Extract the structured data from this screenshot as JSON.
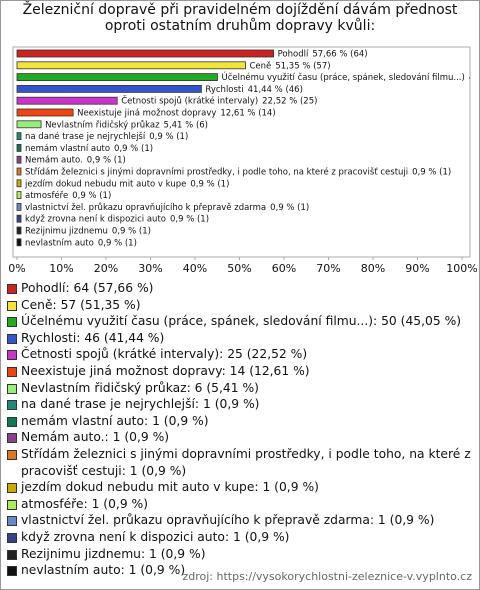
{
  "chart_data": {
    "type": "bar",
    "orientation": "horizontal",
    "title": "Železniční dopravě při pravidelném dojíždění dávám přednost oproti ostatním druhům dopravy kvůli:",
    "categories": [
      "Pohodlí",
      "Ceně",
      "Účelnému využití času (práce, spánek, sledování filmu...)",
      "Rychlosti",
      "Četnosti spojů (krátké intervaly)",
      "Neexistuje jiná možnost dopravy",
      "Nevlastním řidičský průkaz",
      "na dané trase je nejrychlejší",
      "nemám vlastní auto",
      "Nemám auto.",
      "Střídám železnici s jinými dopravními prostředky, i podle toho, na které z pracovišť cestuji",
      "jezdím dokud nebudu mit auto v kupe",
      "atmosféře",
      "vlastnictví žel. průkazu opravňujícího k přepravě zdarma",
      "když zrovna není k dispozici auto",
      "Rezijnimu jizdnemu",
      "nevlastním auto"
    ],
    "values": [
      57.66,
      51.35,
      45.05,
      41.44,
      22.52,
      12.61,
      5.41,
      0.9,
      0.9,
      0.9,
      0.9,
      0.9,
      0.9,
      0.9,
      0.9,
      0.9,
      0.9
    ],
    "value_labels": [
      "57,66 % (64)",
      "51,35 % (57)",
      "45,05 % (50)",
      "41,44 % (46)",
      "22,52 % (25)",
      "12,61 % (14)",
      "5,41 % (6)",
      "0,9 % (1)",
      "0,9 % (1)",
      "0,9 % (1)",
      "0,9 % (1)",
      "0,9 % (1)",
      "0,9 % (1)",
      "0,9 % (1)",
      "0,9 % (1)",
      "0,9 % (1)",
      "0,9 % (1)"
    ],
    "colors": [
      "#cc2222",
      "#f2e43a",
      "#22aa22",
      "#3355cc",
      "#cc33cc",
      "#ee4411",
      "#99ee77",
      "#228877",
      "#117755",
      "#884488",
      "#dd7722",
      "#ccaa00",
      "#aaee55",
      "#6688cc",
      "#334488",
      "#222222",
      "#111111"
    ],
    "legend": [
      "Pohodlí: 64 (57,66 %)",
      "Ceně: 57 (51,35 %)",
      "Účelnému využití času (práce, spánek, sledování filmu...): 50 (45,05 %)",
      "Rychlosti: 46 (41,44 %)",
      "Četnosti spojů (krátké intervaly): 25 (22,52 %)",
      "Neexistuje jiná možnost dopravy: 14 (12,61 %)",
      "Nevlastním řidičský průkaz: 6 (5,41 %)",
      "na dané trase je nejrychlejší: 1 (0,9 %)",
      "nemám vlastní auto: 1 (0,9 %)",
      "Nemám auto.: 1 (0,9 %)",
      "Střídám železnici s jinými dopravními prostředky, i podle toho, na které z pracovišť cestuji: 1 (0,9 %)",
      "jezdím dokud nebudu mit auto v kupe: 1 (0,9 %)",
      "atmosféře: 1 (0,9 %)",
      "vlastnictví žel. průkazu opravňujícího k přepravě zdarma: 1 (0,9 %)",
      "když zrovna není k dispozici auto: 1 (0,9 %)",
      "Rezijnimu jizdnemu: 1 (0,9 %)",
      "nevlastním auto: 1 (0,9 %)"
    ],
    "xlim": [
      0,
      100
    ],
    "xticks": [
      {
        "value": 0,
        "label": "0%"
      },
      {
        "value": 10,
        "label": "10%"
      },
      {
        "value": 20,
        "label": "20%"
      },
      {
        "value": 30,
        "label": "30%"
      },
      {
        "value": 40,
        "label": "40%"
      },
      {
        "value": 50,
        "label": "50%"
      },
      {
        "value": 60,
        "label": "60%"
      },
      {
        "value": 70,
        "label": "70%"
      },
      {
        "value": 80,
        "label": "80%"
      },
      {
        "value": 90,
        "label": "90%"
      },
      {
        "value": 100,
        "label": "100%"
      }
    ],
    "source": "zdroj: https://vysokorychlostni-zeleznice-v.vyplnto.cz"
  }
}
